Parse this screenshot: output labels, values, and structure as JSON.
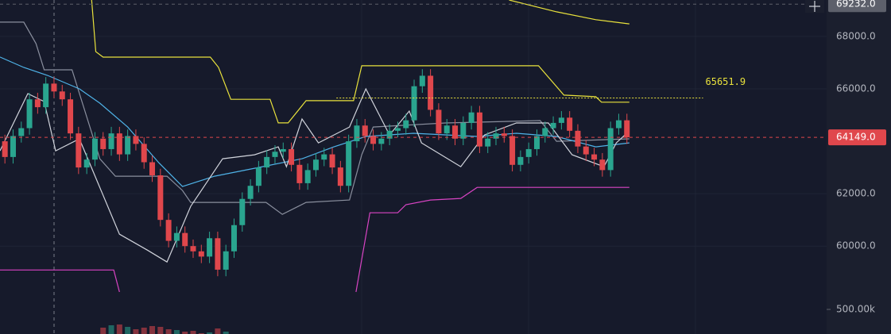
{
  "chart_data": {
    "type": "candlestick",
    "xlim": [
      -0.6,
      100.4
    ],
    "ylim": [
      58250,
      69390
    ],
    "yticks": [
      {
        "value": 68000,
        "label": "68000.0"
      },
      {
        "value": 66000,
        "label": "66000.0"
      },
      {
        "value": 62000,
        "label": "62000.0"
      },
      {
        "value": 60000,
        "label": "60000.0"
      }
    ],
    "grid": true,
    "up_color": "#2aa58f",
    "down_color": "#e0474c",
    "open": [
      64000,
      63400,
      64200,
      64500,
      65600,
      65300,
      66200,
      65900,
      65600,
      64300,
      63000,
      63300,
      64100,
      63700,
      64300,
      63500,
      64200,
      63900,
      63200,
      62700,
      61000,
      60200,
      60500,
      60000,
      59800,
      59600,
      60300,
      59100,
      59800,
      60800,
      61800,
      62300,
      63000,
      63400,
      63600,
      63700,
      63100,
      62400,
      62900,
      63300,
      63500,
      63000,
      62300,
      64000,
      64600,
      64200,
      63900,
      64100,
      64400,
      64500,
      64800,
      66100,
      66500,
      65200,
      64300,
      64600,
      64100,
      64700,
      65100,
      63800,
      64100,
      64300,
      64200,
      63100,
      63400,
      63700,
      64200,
      64500,
      64700,
      64900,
      64400,
      63800,
      63500,
      63300,
      62900,
      64500,
      64800
    ],
    "high": [
      64250,
      64450,
      64750,
      65850,
      65850,
      66450,
      66450,
      66150,
      65850,
      64550,
      63550,
      64350,
      64350,
      64550,
      64550,
      64450,
      64450,
      64150,
      63450,
      62950,
      61250,
      60750,
      60750,
      60250,
      60050,
      60550,
      60550,
      60050,
      61050,
      62050,
      62550,
      63250,
      63650,
      63850,
      63950,
      63950,
      63350,
      63150,
      63550,
      63750,
      63750,
      63250,
      64250,
      64850,
      64850,
      64450,
      64350,
      64650,
      64750,
      65050,
      66350,
      66750,
      66750,
      65450,
      64850,
      64850,
      64950,
      65350,
      65350,
      64350,
      64550,
      64550,
      64450,
      63650,
      63950,
      64450,
      64750,
      64950,
      65150,
      65150,
      64650,
      64050,
      63750,
      63550,
      64750,
      65050,
      65050
    ],
    "low": [
      63150,
      63150,
      63950,
      64250,
      65050,
      65050,
      65650,
      65350,
      64050,
      62750,
      62750,
      63050,
      63450,
      63450,
      63250,
      63250,
      63650,
      62950,
      62450,
      60750,
      59950,
      59950,
      59750,
      59550,
      59350,
      59350,
      58850,
      58850,
      59550,
      60550,
      61550,
      62050,
      62750,
      63150,
      63350,
      62850,
      62150,
      62150,
      62650,
      63050,
      62750,
      62050,
      62050,
      63750,
      63950,
      63650,
      63650,
      63850,
      64150,
      64250,
      64550,
      65850,
      64950,
      64050,
      64050,
      63850,
      63850,
      64450,
      63550,
      63550,
      63850,
      63950,
      62850,
      62850,
      63150,
      63450,
      63950,
      64250,
      64450,
      64150,
      63550,
      63250,
      63050,
      62650,
      62650,
      64250,
      63899
    ],
    "close": [
      63400,
      64200,
      64500,
      65600,
      65300,
      66200,
      65900,
      65600,
      64300,
      63000,
      63300,
      64100,
      63700,
      64300,
      63500,
      64200,
      63900,
      63200,
      62700,
      61000,
      60200,
      60500,
      60000,
      59800,
      59600,
      60300,
      59100,
      59800,
      60800,
      61800,
      62300,
      63000,
      63400,
      63600,
      63700,
      63100,
      62400,
      62900,
      63300,
      63500,
      63000,
      62300,
      64000,
      64600,
      64200,
      63900,
      64100,
      64400,
      64500,
      64800,
      66100,
      66500,
      65200,
      64300,
      64600,
      64100,
      64700,
      65100,
      63800,
      64100,
      64300,
      64200,
      63100,
      63400,
      63700,
      64200,
      64500,
      64700,
      64900,
      64400,
      63800,
      63500,
      63300,
      62900,
      64500,
      64800,
      64149
    ],
    "overlays": [
      {
        "color": "#e9e23c",
        "x": [
          10.6,
          11.1,
          12,
          25.1,
          26.1,
          27.6,
          32.4,
          33.4,
          34.6,
          36.8,
          42.6,
          43.6,
          65.2,
          68.3,
          72.2,
          72.9,
          76.3
        ],
        "values": [
          69390,
          67420,
          67210,
          67210,
          66820,
          65600,
          65600,
          64700,
          64700,
          65550,
          65550,
          66880,
          66880,
          65760,
          65700,
          65490,
          65490
        ]
      },
      {
        "color": "#e9e23c",
        "x": [
          61.6,
          67.4,
          72.2,
          76.3
        ],
        "values": [
          69390,
          68940,
          68640,
          68480
        ]
      },
      {
        "color": "#d944c4",
        "x": [
          -0.6,
          13.3,
          14.0,
          28,
          42.9,
          44.6,
          48,
          49,
          52,
          55.7,
          57.7,
          76.3
        ],
        "values": [
          59090,
          59090,
          58250,
          null,
          58250,
          61270,
          61270,
          61580,
          61760,
          61820,
          62240,
          62240
        ]
      },
      {
        "color": "#8a8f9e",
        "x": [
          -0.6,
          2.3,
          3.8,
          4.8,
          8.2,
          11.6,
          13.5,
          19.8,
          21.7,
          22.7,
          31.9,
          33.9,
          36.8,
          42.1,
          43.6,
          45.0,
          53.8,
          65.4,
          67.4,
          76.3
        ],
        "values": [
          68545,
          68545,
          67727,
          66727,
          66727,
          63333,
          62667,
          62667,
          62121,
          61667,
          61667,
          61212,
          61667,
          61758,
          63485,
          64545,
          64697,
          64788,
          64000,
          64091
        ]
      },
      {
        "color": "#4fb3e8",
        "x": [
          -0.6,
          2.3,
          5.2,
          9.1,
          11.6,
          15.0,
          18.8,
          21.7,
          25.6,
          30.5,
          36.3,
          40.2,
          44.1,
          49.9,
          57.7,
          62.5,
          67.4,
          72.2,
          76.3
        ],
        "values": [
          67212,
          66818,
          66515,
          66000,
          65455,
          64545,
          63182,
          62273,
          62667,
          62970,
          63333,
          63788,
          64182,
          64303,
          64182,
          64303,
          64182,
          63788,
          63939
        ]
      },
      {
        "color": "#d1d4dc",
        "x": [
          -0.6,
          2.8,
          4.8,
          6.2,
          9.1,
          14.0,
          17.4,
          19.8,
          22.7,
          26.6,
          30.5,
          33.4,
          34.4,
          36.3,
          38.3,
          42.1,
          44.1,
          47.0,
          49.4,
          50.9,
          55.7,
          58.6,
          62.5,
          66.4,
          69.3,
          73.2,
          74.7,
          76.3
        ],
        "values": [
          63636,
          65818,
          65515,
          63636,
          64091,
          60455,
          59848,
          59394,
          61515,
          63333,
          63485,
          63788,
          63030,
          64848,
          63939,
          64545,
          66000,
          64242,
          65152,
          63939,
          63030,
          64242,
          64697,
          64697,
          63485,
          63030,
          63939,
          64394
        ]
      }
    ],
    "price_lines": [
      {
        "value": 69232,
        "label": "69232.0",
        "color": "#5d606b"
      },
      {
        "value": 64149,
        "label": "64149.0",
        "color": "#e0474c"
      }
    ],
    "annotation": {
      "value": 65651.9,
      "label": "65651.9",
      "x": [
        40.5,
        85.3
      ],
      "color": "#e9e23c"
    },
    "volume": {
      "x": [
        12,
        13,
        14,
        15,
        16,
        17,
        18,
        19,
        20,
        21,
        22,
        23,
        24,
        25,
        26,
        27
      ],
      "values": [
        356250,
        375000,
        381250,
        362500,
        343750,
        356250,
        368750,
        362500,
        343750,
        337500,
        325000,
        331250,
        312500,
        318750,
        350000,
        325000
      ],
      "ylim": [
        306250,
        637500
      ],
      "yticks": [
        {
          "value": 500000,
          "label": "500.00k"
        }
      ]
    }
  }
}
